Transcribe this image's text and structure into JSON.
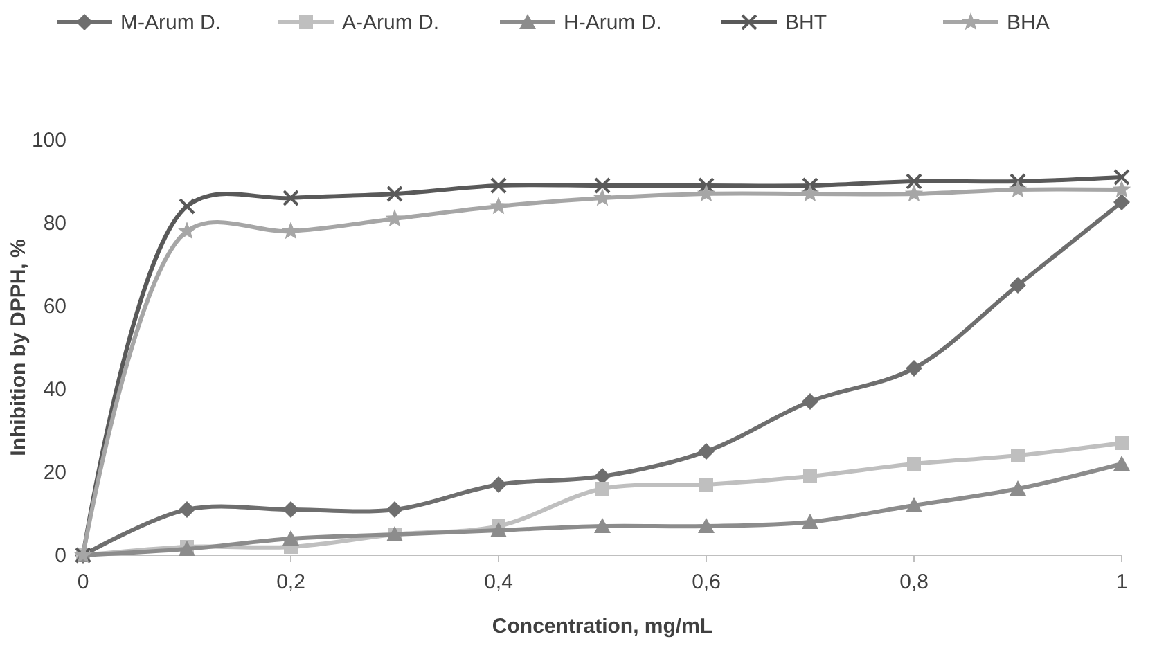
{
  "chart_data": {
    "type": "line",
    "xlabel": "Concentration, mg/mL",
    "ylabel": "Inhibition by DPPH, %",
    "x": [
      0,
      0.1,
      0.2,
      0.3,
      0.4,
      0.5,
      0.6,
      0.7,
      0.8,
      0.9,
      1
    ],
    "series": [
      {
        "name": "M-Arum D.",
        "color": "#6e6e6e",
        "marker": "diamond",
        "values": [
          0,
          11,
          11,
          11,
          17,
          19,
          25,
          37,
          45,
          65,
          85
        ]
      },
      {
        "name": "A-Arum D.",
        "color": "#bfbfbf",
        "marker": "square",
        "values": [
          0,
          2,
          2,
          5,
          7,
          16,
          17,
          19,
          22,
          24,
          27
        ]
      },
      {
        "name": "H-Arum D.",
        "color": "#8c8c8c",
        "marker": "triangle",
        "values": [
          0,
          1.5,
          4,
          5,
          6,
          7,
          7,
          8,
          12,
          16,
          22
        ]
      },
      {
        "name": "BHT",
        "color": "#595959",
        "marker": "cross",
        "values": [
          0,
          84,
          86,
          87,
          89,
          89,
          89,
          89,
          90,
          90,
          91
        ]
      },
      {
        "name": "BHA",
        "color": "#a6a6a6",
        "marker": "star",
        "values": [
          0,
          78,
          78,
          81,
          84,
          86,
          87,
          87,
          87,
          88,
          88
        ]
      }
    ],
    "xlim": [
      0,
      1
    ],
    "xticks": [
      0,
      {
        "value": 0.2,
        "label": "0,2"
      },
      {
        "value": 0.4,
        "label": "0,4"
      },
      {
        "value": 0.6,
        "label": "0,6"
      },
      {
        "value": 0.8,
        "label": "0,8"
      },
      1
    ],
    "ylim": [
      0,
      100
    ],
    "yticks": [
      0,
      20,
      40,
      60,
      80,
      100
    ],
    "legend": "top",
    "grid": false
  }
}
